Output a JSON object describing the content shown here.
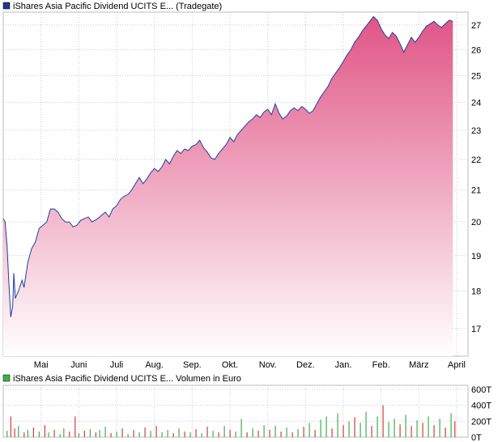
{
  "chart_data": [
    {
      "type": "area",
      "title": "iShares Asia Pacific Dividend UCITS E... (Tradegate)",
      "legend_color": "#1e3a8a",
      "line_color": "#1f3f9f",
      "fill_top_color": "#e05585",
      "fill_bottom_color": "#ffffff",
      "x_ticks": [
        "Mai",
        "Juni",
        "Juli",
        "Aug.",
        "Sep.",
        "Okt.",
        "Nov.",
        "Dez.",
        "Jan.",
        "Feb.",
        "März",
        "April"
      ],
      "y_ticks": [
        17,
        18,
        19,
        20,
        21,
        22,
        23,
        24,
        25,
        26,
        27
      ],
      "ylim": [
        16.3,
        27.4
      ],
      "xlim": [
        0,
        12.3
      ],
      "y_scale": "log",
      "grid": true,
      "points": [
        [
          0.0,
          20.1
        ],
        [
          0.05,
          20.0
        ],
        [
          0.1,
          19.3
        ],
        [
          0.15,
          18.2
        ],
        [
          0.2,
          17.3
        ],
        [
          0.25,
          17.6
        ],
        [
          0.28,
          18.5
        ],
        [
          0.32,
          17.8
        ],
        [
          0.4,
          18.0
        ],
        [
          0.5,
          18.3
        ],
        [
          0.55,
          18.1
        ],
        [
          0.65,
          18.8
        ],
        [
          0.75,
          19.2
        ],
        [
          0.85,
          19.4
        ],
        [
          0.95,
          19.8
        ],
        [
          1.05,
          19.9
        ],
        [
          1.15,
          20.0
        ],
        [
          1.25,
          20.4
        ],
        [
          1.35,
          20.4
        ],
        [
          1.45,
          20.3
        ],
        [
          1.55,
          20.1
        ],
        [
          1.65,
          20.0
        ],
        [
          1.75,
          20.0
        ],
        [
          1.85,
          19.85
        ],
        [
          1.95,
          19.9
        ],
        [
          2.05,
          20.05
        ],
        [
          2.15,
          20.1
        ],
        [
          2.25,
          20.15
        ],
        [
          2.35,
          20.0
        ],
        [
          2.5,
          20.1
        ],
        [
          2.6,
          20.2
        ],
        [
          2.7,
          20.3
        ],
        [
          2.8,
          20.15
        ],
        [
          2.9,
          20.4
        ],
        [
          3.0,
          20.5
        ],
        [
          3.1,
          20.7
        ],
        [
          3.2,
          20.8
        ],
        [
          3.3,
          20.85
        ],
        [
          3.4,
          21.0
        ],
        [
          3.5,
          21.2
        ],
        [
          3.6,
          21.4
        ],
        [
          3.7,
          21.2
        ],
        [
          3.8,
          21.35
        ],
        [
          3.9,
          21.55
        ],
        [
          4.0,
          21.7
        ],
        [
          4.1,
          21.6
        ],
        [
          4.2,
          21.75
        ],
        [
          4.3,
          22.0
        ],
        [
          4.4,
          21.85
        ],
        [
          4.5,
          22.1
        ],
        [
          4.6,
          22.3
        ],
        [
          4.7,
          22.2
        ],
        [
          4.8,
          22.35
        ],
        [
          4.9,
          22.3
        ],
        [
          5.0,
          22.45
        ],
        [
          5.1,
          22.5
        ],
        [
          5.2,
          22.65
        ],
        [
          5.3,
          22.4
        ],
        [
          5.4,
          22.25
        ],
        [
          5.5,
          22.05
        ],
        [
          5.6,
          22.0
        ],
        [
          5.7,
          22.2
        ],
        [
          5.8,
          22.35
        ],
        [
          5.9,
          22.5
        ],
        [
          6.0,
          22.75
        ],
        [
          6.1,
          22.6
        ],
        [
          6.2,
          22.85
        ],
        [
          6.3,
          23.0
        ],
        [
          6.4,
          23.15
        ],
        [
          6.5,
          23.3
        ],
        [
          6.6,
          23.4
        ],
        [
          6.7,
          23.55
        ],
        [
          6.8,
          23.45
        ],
        [
          6.9,
          23.65
        ],
        [
          7.0,
          23.75
        ],
        [
          7.1,
          23.55
        ],
        [
          7.2,
          23.95
        ],
        [
          7.3,
          23.6
        ],
        [
          7.4,
          23.4
        ],
        [
          7.5,
          23.5
        ],
        [
          7.6,
          23.7
        ],
        [
          7.7,
          23.8
        ],
        [
          7.8,
          23.7
        ],
        [
          7.9,
          23.85
        ],
        [
          8.0,
          23.75
        ],
        [
          8.1,
          23.6
        ],
        [
          8.2,
          23.7
        ],
        [
          8.3,
          23.95
        ],
        [
          8.4,
          24.2
        ],
        [
          8.5,
          24.4
        ],
        [
          8.6,
          24.6
        ],
        [
          8.7,
          24.9
        ],
        [
          8.8,
          25.1
        ],
        [
          8.9,
          25.3
        ],
        [
          9.0,
          25.55
        ],
        [
          9.1,
          25.8
        ],
        [
          9.2,
          26.0
        ],
        [
          9.3,
          26.3
        ],
        [
          9.4,
          26.5
        ],
        [
          9.5,
          26.75
        ],
        [
          9.6,
          26.95
        ],
        [
          9.7,
          27.15
        ],
        [
          9.8,
          27.35
        ],
        [
          9.9,
          27.2
        ],
        [
          10.0,
          26.85
        ],
        [
          10.1,
          26.6
        ],
        [
          10.2,
          26.45
        ],
        [
          10.3,
          26.7
        ],
        [
          10.4,
          26.55
        ],
        [
          10.5,
          26.25
        ],
        [
          10.6,
          25.9
        ],
        [
          10.7,
          26.2
        ],
        [
          10.8,
          26.5
        ],
        [
          10.9,
          26.3
        ],
        [
          11.0,
          26.5
        ],
        [
          11.1,
          26.75
        ],
        [
          11.2,
          26.95
        ],
        [
          11.3,
          27.05
        ],
        [
          11.4,
          27.15
        ],
        [
          11.5,
          27.0
        ],
        [
          11.6,
          26.9
        ],
        [
          11.7,
          27.05
        ],
        [
          11.8,
          27.2
        ],
        [
          11.9,
          27.15
        ]
      ]
    },
    {
      "type": "bar",
      "title": "iShares Asia Pacific Dividend UCITS E... Volumen in Euro",
      "legend_color": "#37b34a",
      "y_ticks": [
        "600T",
        "400T",
        "200T",
        "0T"
      ],
      "y_tick_values": [
        600,
        400,
        200,
        0
      ],
      "ylim": [
        0,
        650
      ],
      "ylabel": "",
      "grid": true,
      "bars": [
        [
          0.1,
          80,
          "green"
        ],
        [
          0.2,
          260,
          "red"
        ],
        [
          0.3,
          110,
          "red"
        ],
        [
          0.4,
          140,
          "green"
        ],
        [
          0.55,
          60,
          "red"
        ],
        [
          0.65,
          90,
          "green"
        ],
        [
          0.8,
          120,
          "red"
        ],
        [
          0.95,
          70,
          "green"
        ],
        [
          1.1,
          150,
          "red"
        ],
        [
          1.2,
          60,
          "green"
        ],
        [
          1.35,
          90,
          "red"
        ],
        [
          1.5,
          40,
          "green"
        ],
        [
          1.6,
          110,
          "green"
        ],
        [
          1.75,
          70,
          "red"
        ],
        [
          1.9,
          260,
          "red"
        ],
        [
          2.0,
          50,
          "green"
        ],
        [
          2.15,
          80,
          "red"
        ],
        [
          2.3,
          100,
          "green"
        ],
        [
          2.45,
          60,
          "red"
        ],
        [
          2.55,
          90,
          "green"
        ],
        [
          2.7,
          130,
          "green"
        ],
        [
          2.85,
          50,
          "red"
        ],
        [
          3.0,
          70,
          "green"
        ],
        [
          3.15,
          110,
          "red"
        ],
        [
          3.3,
          40,
          "green"
        ],
        [
          3.45,
          90,
          "red"
        ],
        [
          3.6,
          60,
          "green"
        ],
        [
          3.75,
          120,
          "red"
        ],
        [
          3.9,
          80,
          "green"
        ],
        [
          4.05,
          140,
          "red"
        ],
        [
          4.2,
          60,
          "green"
        ],
        [
          4.35,
          90,
          "green"
        ],
        [
          4.5,
          50,
          "red"
        ],
        [
          4.65,
          110,
          "green"
        ],
        [
          4.8,
          70,
          "red"
        ],
        [
          4.95,
          60,
          "green"
        ],
        [
          5.1,
          100,
          "red"
        ],
        [
          5.25,
          50,
          "green"
        ],
        [
          5.4,
          130,
          "red"
        ],
        [
          5.55,
          80,
          "green"
        ],
        [
          5.7,
          60,
          "red"
        ],
        [
          5.85,
          140,
          "green"
        ],
        [
          6.0,
          90,
          "red"
        ],
        [
          6.15,
          70,
          "green"
        ],
        [
          6.3,
          230,
          "green"
        ],
        [
          6.45,
          60,
          "red"
        ],
        [
          6.6,
          110,
          "green"
        ],
        [
          6.75,
          80,
          "red"
        ],
        [
          6.9,
          150,
          "green"
        ],
        [
          7.05,
          90,
          "red"
        ],
        [
          7.2,
          140,
          "green"
        ],
        [
          7.35,
          70,
          "red"
        ],
        [
          7.5,
          120,
          "green"
        ],
        [
          7.65,
          60,
          "red"
        ],
        [
          7.8,
          100,
          "green"
        ],
        [
          7.95,
          130,
          "red"
        ],
        [
          8.1,
          180,
          "green"
        ],
        [
          8.25,
          90,
          "red"
        ],
        [
          8.4,
          220,
          "green"
        ],
        [
          8.55,
          260,
          "green"
        ],
        [
          8.7,
          110,
          "red"
        ],
        [
          8.85,
          300,
          "green"
        ],
        [
          9.0,
          150,
          "red"
        ],
        [
          9.15,
          200,
          "green"
        ],
        [
          9.3,
          250,
          "red"
        ],
        [
          9.45,
          180,
          "green"
        ],
        [
          9.6,
          320,
          "green"
        ],
        [
          9.75,
          140,
          "red"
        ],
        [
          9.9,
          260,
          "green"
        ],
        [
          10.05,
          400,
          "red"
        ],
        [
          10.2,
          190,
          "green"
        ],
        [
          10.35,
          230,
          "green"
        ],
        [
          10.5,
          160,
          "red"
        ],
        [
          10.65,
          280,
          "green"
        ],
        [
          10.8,
          140,
          "red"
        ],
        [
          10.95,
          210,
          "green"
        ],
        [
          11.1,
          180,
          "red"
        ],
        [
          11.25,
          260,
          "green"
        ],
        [
          11.4,
          150,
          "red"
        ],
        [
          11.55,
          230,
          "green"
        ],
        [
          11.7,
          120,
          "red"
        ],
        [
          11.85,
          300,
          "green"
        ],
        [
          11.95,
          200,
          "red"
        ]
      ]
    }
  ]
}
